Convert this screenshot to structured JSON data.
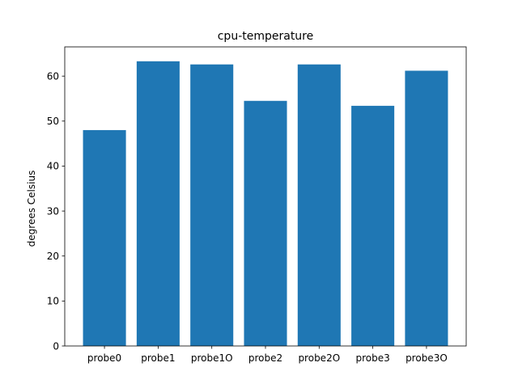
{
  "chart_data": {
    "type": "bar",
    "title": "cpu-temperature",
    "xlabel": "",
    "ylabel": "degrees Celsius",
    "categories": [
      "probe0",
      "probe1",
      "probe1O",
      "probe2",
      "probe2O",
      "probe3",
      "probe3O"
    ],
    "values": [
      48.0,
      63.3,
      62.6,
      54.5,
      62.6,
      53.4,
      61.2
    ],
    "ylim": [
      0,
      66.5
    ],
    "yticks": [
      0,
      10,
      20,
      30,
      40,
      50,
      60
    ],
    "bar_color": "#1f77b4",
    "grid": false,
    "legend": false
  }
}
